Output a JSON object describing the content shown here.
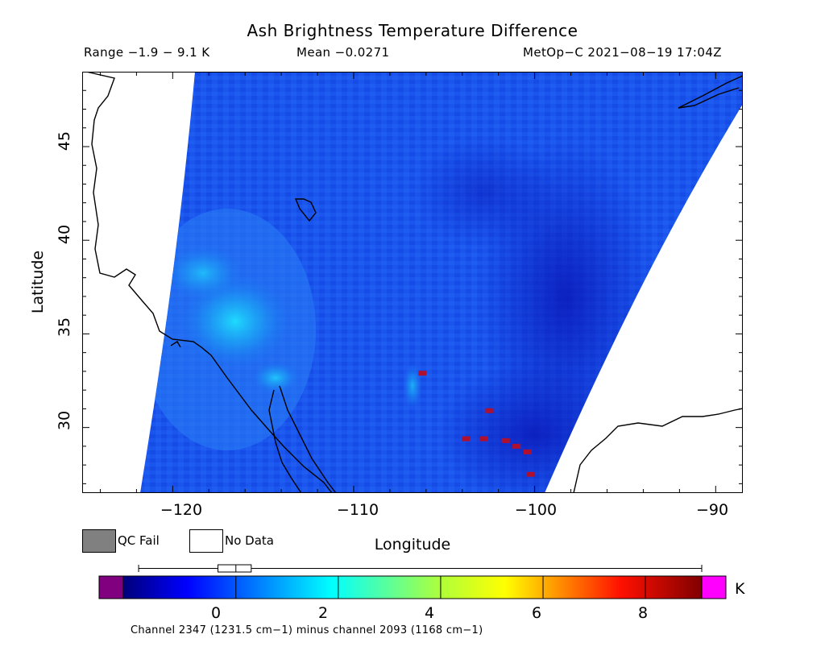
{
  "title": "Ash Brightness Temperature Difference",
  "header": {
    "range": "Range −1.9 − 9.1 K",
    "mean": "Mean −0.0271",
    "satellite": "MetOp−C 2021−08−19 17:04Z"
  },
  "map": {
    "lon_range": [
      -125,
      -88.5
    ],
    "lat_range": [
      26.5,
      49
    ],
    "x_ticks": [
      "−120",
      "−110",
      "−100",
      "−90"
    ],
    "y_ticks": [
      "30",
      "35",
      "40",
      "45"
    ],
    "xlabel": "Longitude",
    "ylabel": "Latitude",
    "background_color": "#1a55ee",
    "no_data_color": "#ffffff",
    "coastline_color": "#000000",
    "warm_pixel_color": "#b01030"
  },
  "legend": {
    "qc_fail_label": "QC Fail",
    "qc_fail_color": "#808080",
    "no_data_label": "No Data",
    "no_data_color": "#ffffff"
  },
  "colorbar": {
    "range": [
      -2.2,
      9.1
    ],
    "tick_labels": [
      "0",
      "2",
      "4",
      "6",
      "8"
    ],
    "tick_values": [
      0,
      2,
      4,
      6,
      8
    ],
    "under_color": "#800080",
    "over_color": "#ff00ff",
    "unit": "K",
    "boxplot": {
      "whisker_low": -1.9,
      "q1": -0.35,
      "median": 0.0,
      "q3": 0.3,
      "whisker_high": 9.1
    }
  },
  "footnote": "Channel 2347 (1231.5 cm−1) minus channel 2093 (1168 cm−1)"
}
